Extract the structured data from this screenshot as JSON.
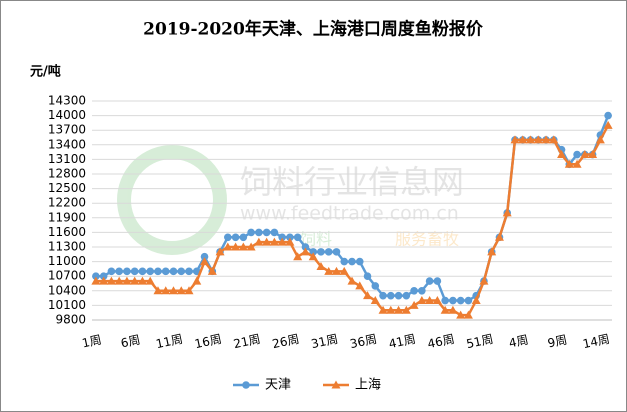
{
  "chart_data": {
    "type": "line",
    "title": "2019-2020年天津、上海港口周度鱼粉报价",
    "y_label": "元/吨",
    "watermark": [
      "饲料行业信息网",
      "www.feedtrade.com.cn",
      "饲料",
      "服务畜牧"
    ],
    "categories": [
      "1周",
      null,
      null,
      null,
      null,
      "6周",
      null,
      null,
      null,
      null,
      "11周",
      null,
      null,
      null,
      null,
      "16周",
      null,
      null,
      null,
      null,
      "21周",
      null,
      null,
      null,
      null,
      "26周",
      null,
      null,
      null,
      null,
      "31周",
      null,
      null,
      null,
      null,
      "36周",
      null,
      null,
      null,
      null,
      "41周",
      null,
      null,
      null,
      null,
      "46周",
      null,
      null,
      null,
      null,
      "51周",
      null,
      null,
      null,
      null,
      "4周",
      null,
      null,
      null,
      null,
      "9周",
      null,
      null,
      null,
      null,
      "14周",
      null
    ],
    "series": [
      {
        "name": "天津",
        "color": "#5b9bd5",
        "marker": "circle",
        "values": [
          10700,
          10700,
          10800,
          10800,
          10800,
          10800,
          10800,
          10800,
          10800,
          10800,
          10800,
          10800,
          10800,
          10800,
          11100,
          10800,
          11200,
          11500,
          11500,
          11500,
          11600,
          11600,
          11600,
          11600,
          11500,
          11500,
          11500,
          11300,
          11200,
          11200,
          11200,
          11200,
          11000,
          11000,
          11000,
          10700,
          10500,
          10300,
          10300,
          10300,
          10300,
          10400,
          10400,
          10600,
          10600,
          10200,
          10200,
          10200,
          10200,
          10300,
          10600,
          11200,
          11500,
          12000,
          13500,
          13500,
          13500,
          13500,
          13500,
          13500,
          13300,
          13000,
          13200,
          13200,
          13200,
          13600,
          14000
        ]
      },
      {
        "name": "上海",
        "color": "#ed7d31",
        "marker": "triangle",
        "values": [
          10600,
          10600,
          10600,
          10600,
          10600,
          10600,
          10600,
          10600,
          10400,
          10400,
          10400,
          10400,
          10400,
          10600,
          11000,
          10800,
          11200,
          11300,
          11300,
          11300,
          11300,
          11400,
          11400,
          11400,
          11400,
          11400,
          11100,
          11200,
          11100,
          10900,
          10800,
          10800,
          10800,
          10600,
          10500,
          10300,
          10200,
          10000,
          10000,
          10000,
          10000,
          10100,
          10200,
          10200,
          10200,
          10000,
          10000,
          9900,
          9900,
          10200,
          10600,
          11200,
          11500,
          12000,
          13500,
          13500,
          13500,
          13500,
          13500,
          13500,
          13200,
          13000,
          13000,
          13200,
          13200,
          13500,
          13800
        ]
      }
    ],
    "ylim": [
      9800,
      14300
    ],
    "yticks": [
      9800,
      10100,
      10400,
      10700,
      11000,
      11300,
      11600,
      11900,
      12200,
      12500,
      12800,
      13100,
      13400,
      13700,
      14000,
      14300
    ],
    "grid": true,
    "legend": "bottom"
  }
}
